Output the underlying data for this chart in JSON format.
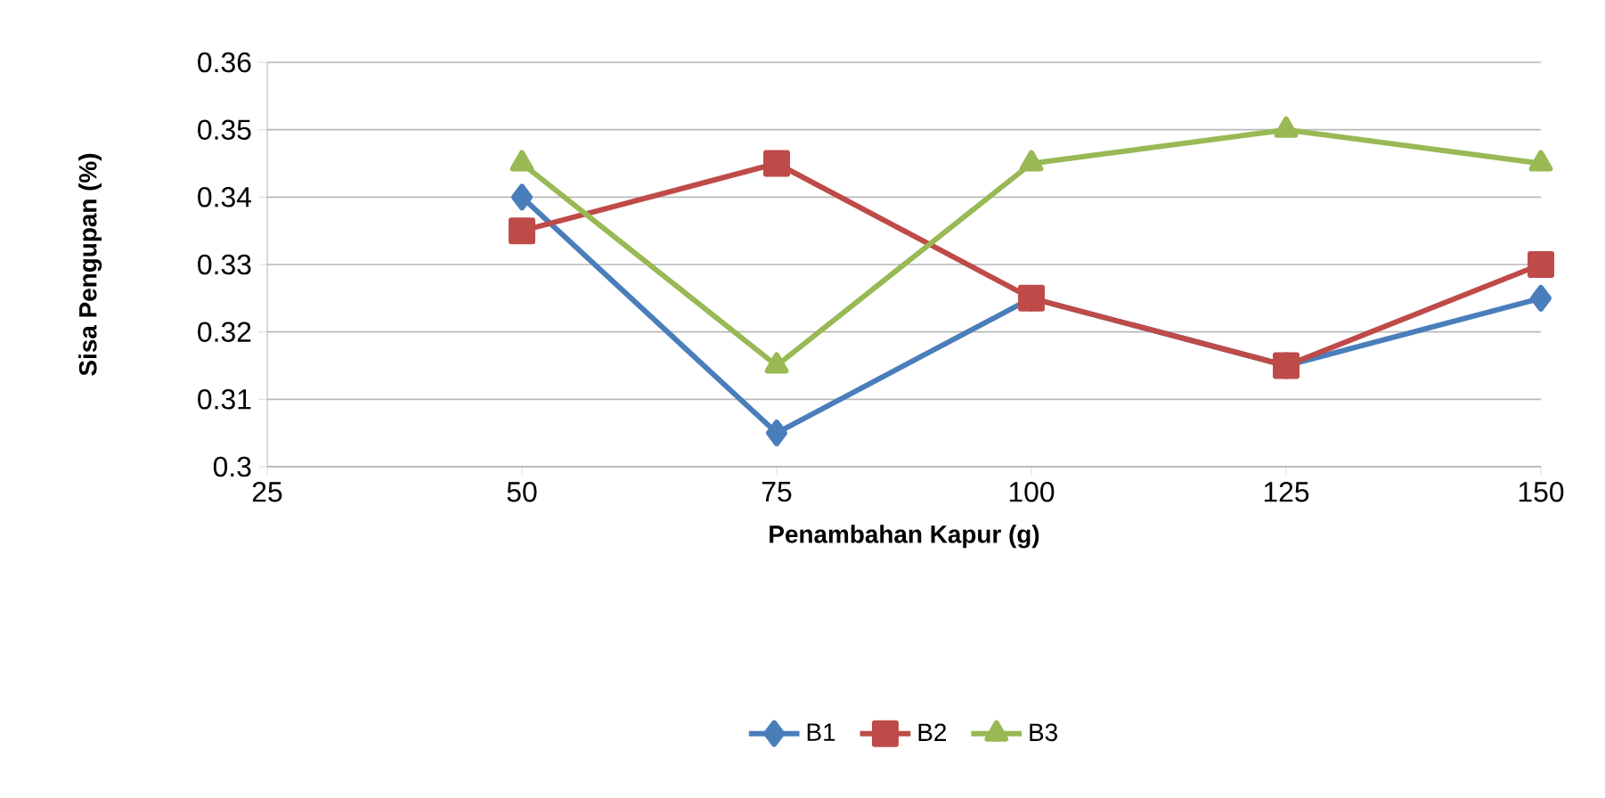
{
  "chart_data": {
    "type": "line",
    "xlabel": "Penambahan Kapur (g)",
    "ylabel": "Sisa Pengupan (%)",
    "x": [
      50,
      75,
      100,
      125,
      150
    ],
    "series": [
      {
        "name": "B1",
        "color": "#4a7ebb",
        "marker": "diamond",
        "values": [
          0.34,
          0.305,
          0.325,
          0.315,
          0.325
        ]
      },
      {
        "name": "B2",
        "color": "#be4b48",
        "marker": "square",
        "values": [
          0.335,
          0.345,
          0.325,
          0.315,
          0.33
        ]
      },
      {
        "name": "B3",
        "color": "#98b954",
        "marker": "triangle",
        "values": [
          0.345,
          0.315,
          0.345,
          0.35,
          0.345
        ]
      }
    ],
    "xlim": [
      25,
      150
    ],
    "ylim": [
      0.3,
      0.36
    ],
    "xticks": [
      25,
      50,
      75,
      100,
      125,
      150
    ],
    "yticks": [
      0.3,
      0.31,
      0.32,
      0.33,
      0.34,
      0.35,
      0.36
    ],
    "grid": "y",
    "legend": "bottom",
    "line_style": "solid"
  }
}
